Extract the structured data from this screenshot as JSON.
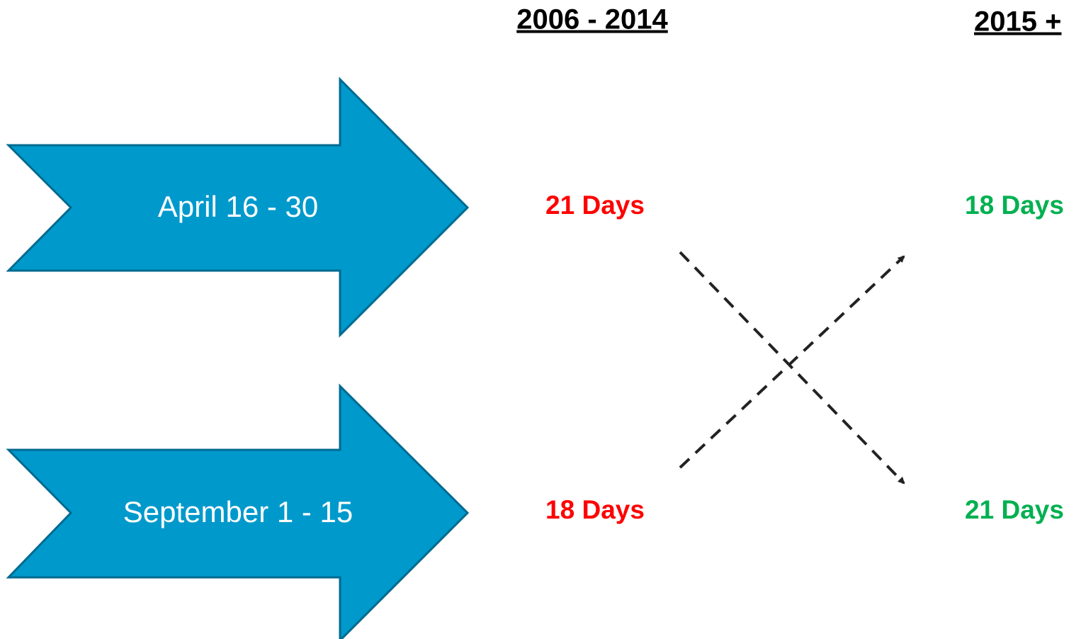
{
  "headers": {
    "before": "2006 - 2014",
    "after": "2015 +"
  },
  "rows": [
    {
      "label": "April 16 - 30",
      "before": "21 Days",
      "after": "18 Days"
    },
    {
      "label": "September 1 - 15",
      "before": "18 Days",
      "after": "21 Days"
    }
  ]
}
